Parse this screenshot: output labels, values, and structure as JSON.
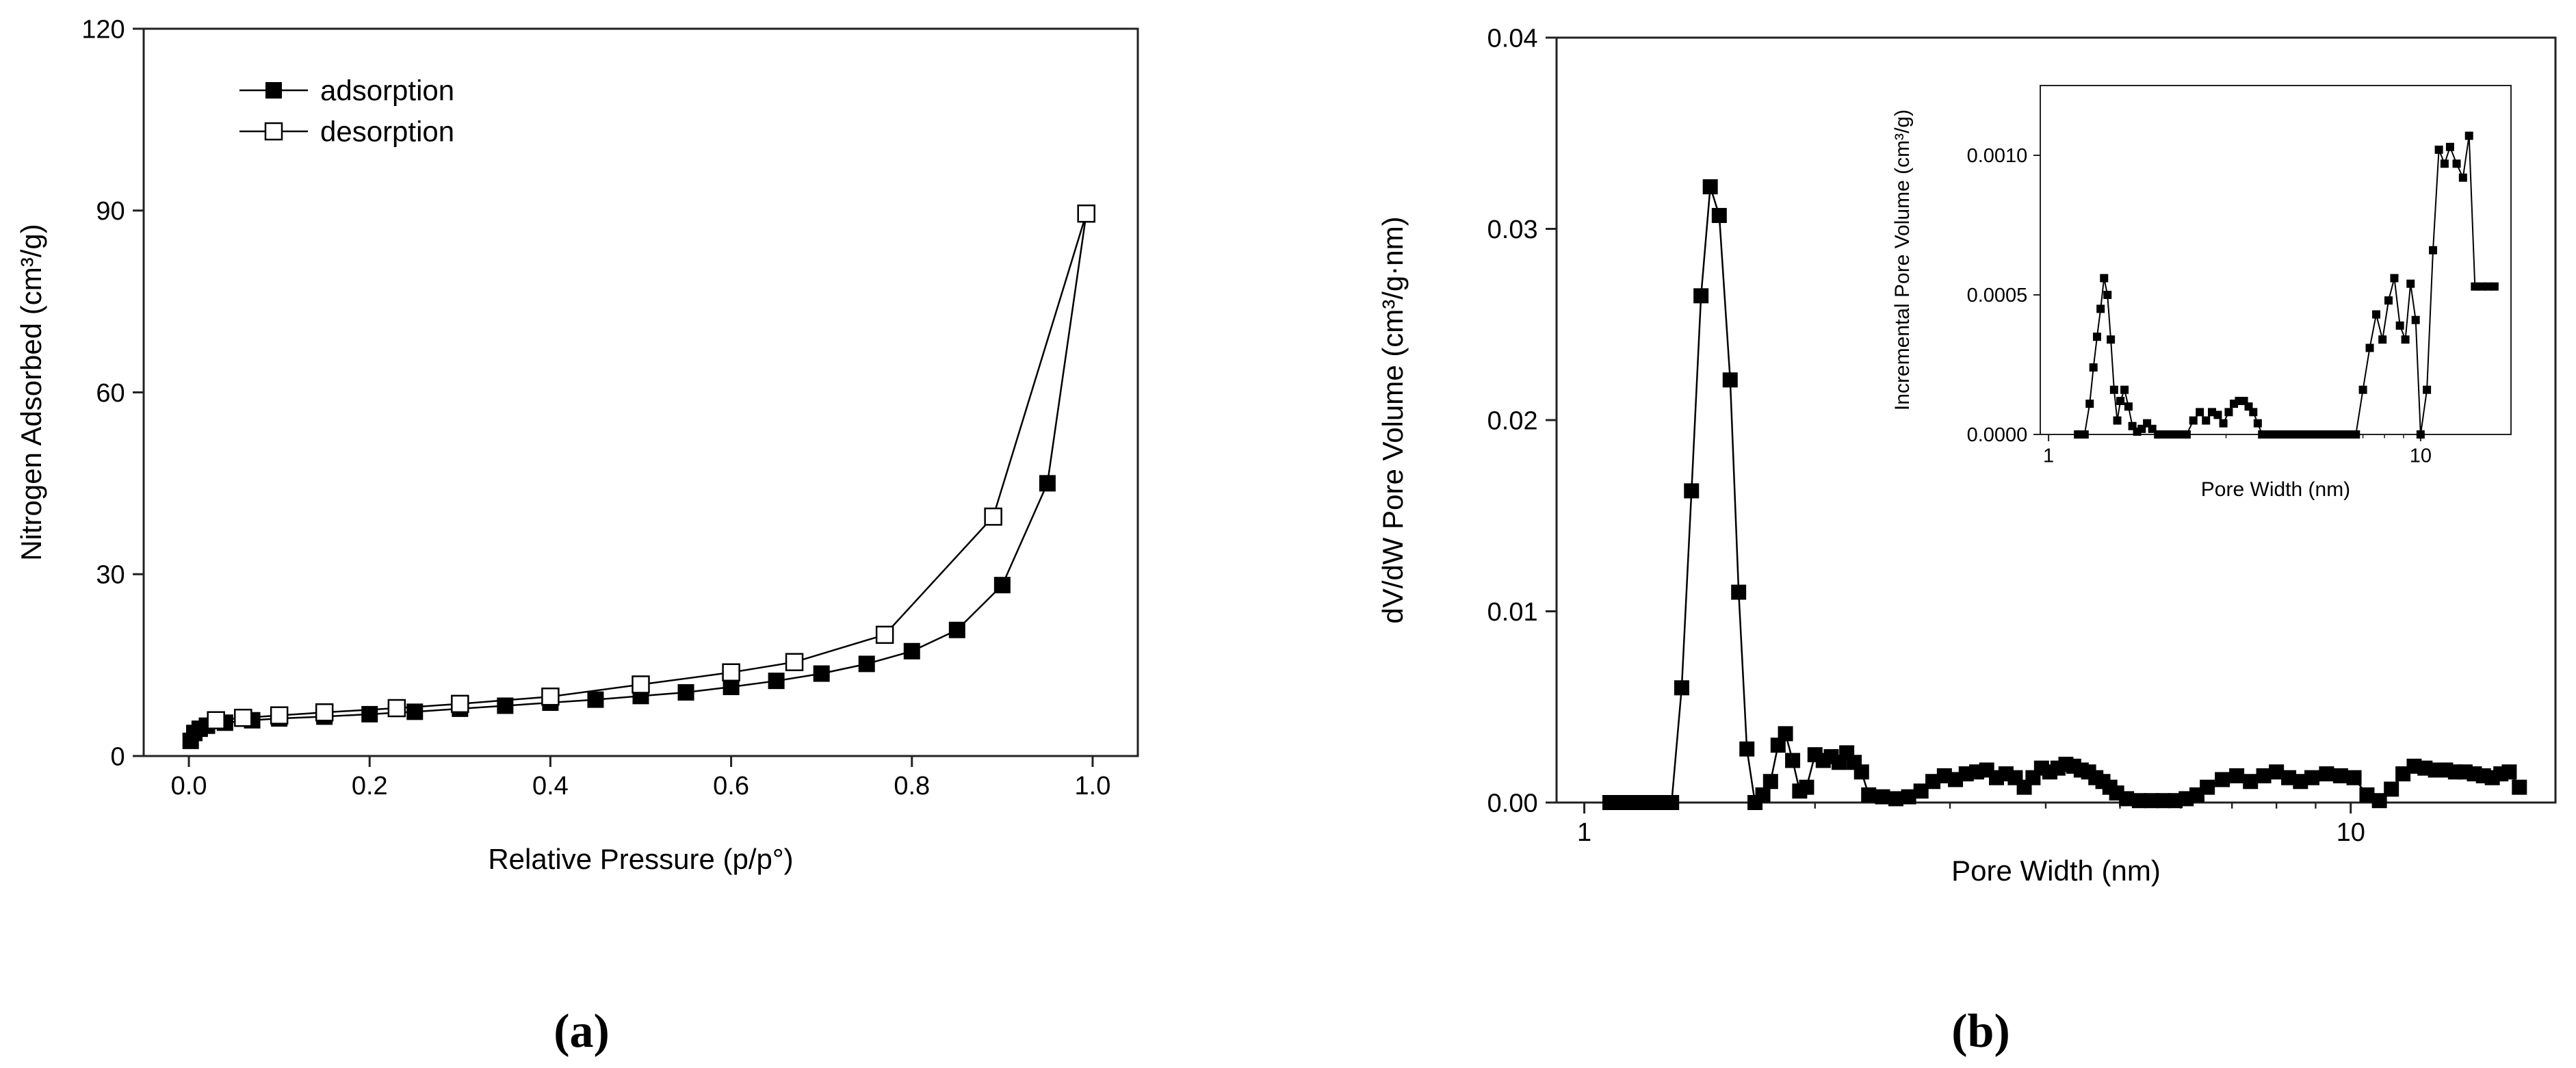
{
  "panels": {
    "a": {
      "caption": "(a)"
    },
    "b": {
      "caption": "(b)"
    }
  },
  "colors": {
    "ink": "#000000",
    "axis": "#222222",
    "background": "#ffffff"
  },
  "chart_data": [
    {
      "id": "a",
      "type": "scatter",
      "title": "",
      "xlabel": "Relative Pressure (p/p°)",
      "ylabel": "Nitrogen Adsorbed (cm³/g)",
      "xlim": [
        -0.05,
        1.05
      ],
      "ylim": [
        0,
        120
      ],
      "xscale": "linear",
      "xticks": [
        0.0,
        0.2,
        0.4,
        0.6,
        0.8,
        1.0
      ],
      "xtick_labels": [
        "0.0",
        "0.2",
        "0.4",
        "0.6",
        "0.8",
        "1.0"
      ],
      "yticks": [
        0,
        30,
        60,
        90,
        120
      ],
      "ytick_labels": [
        "0",
        "30",
        "60",
        "90",
        "120"
      ],
      "legend": "top-left",
      "series": [
        {
          "name": "adsorption",
          "marker": "filled-square",
          "line": true,
          "x": [
            0.002,
            0.006,
            0.012,
            0.02,
            0.04,
            0.07,
            0.1,
            0.15,
            0.2,
            0.25,
            0.3,
            0.35,
            0.4,
            0.45,
            0.5,
            0.55,
            0.6,
            0.65,
            0.7,
            0.75,
            0.8,
            0.85,
            0.9,
            0.95,
            0.993
          ],
          "y": [
            2.5,
            3.8,
            4.5,
            5.0,
            5.5,
            5.9,
            6.2,
            6.5,
            6.9,
            7.3,
            7.8,
            8.3,
            8.8,
            9.3,
            9.9,
            10.5,
            11.4,
            12.4,
            13.6,
            15.2,
            17.3,
            20.8,
            28.2,
            45.0,
            89.5
          ]
        },
        {
          "name": "desorption",
          "marker": "open-square",
          "line": true,
          "x": [
            0.993,
            0.89,
            0.77,
            0.67,
            0.6,
            0.5,
            0.4,
            0.3,
            0.23,
            0.15,
            0.1,
            0.06,
            0.03
          ],
          "y": [
            89.5,
            39.5,
            20.0,
            15.5,
            13.8,
            11.8,
            9.8,
            8.6,
            7.9,
            7.2,
            6.7,
            6.3,
            5.9
          ]
        }
      ]
    },
    {
      "id": "b",
      "type": "scatter",
      "title": "",
      "xlabel": "Pore Width (nm)",
      "ylabel": "dV/dW Pore Volume (cm³/g·nm)",
      "xlim": [
        0.92,
        18.5
      ],
      "ylim": [
        0,
        0.04
      ],
      "xscale": "log",
      "xticks": [
        1,
        10
      ],
      "xtick_labels": [
        "1",
        "10"
      ],
      "yticks": [
        0,
        0.01,
        0.02,
        0.03,
        0.04
      ],
      "ytick_labels": [
        "0.00",
        "0.01",
        "0.02",
        "0.03",
        "0.04"
      ],
      "series": [
        {
          "name": "dV/dW",
          "marker": "filled-square",
          "line": true,
          "x": [
            1.08,
            1.12,
            1.16,
            1.2,
            1.24,
            1.28,
            1.3,
            1.34,
            1.38,
            1.42,
            1.46,
            1.5,
            1.55,
            1.59,
            1.63,
            1.67,
            1.71,
            1.75,
            1.79,
            1.83,
            1.87,
            1.91,
            1.95,
            2.0,
            2.05,
            2.1,
            2.15,
            2.2,
            2.25,
            2.3,
            2.35,
            2.45,
            2.55,
            2.65,
            2.75,
            2.85,
            2.95,
            3.05,
            3.15,
            3.25,
            3.35,
            3.45,
            3.55,
            3.65,
            3.75,
            3.85,
            3.95,
            4.05,
            4.15,
            4.25,
            4.35,
            4.45,
            4.55,
            4.65,
            4.75,
            4.85,
            4.95,
            5.1,
            5.3,
            5.5,
            5.7,
            5.9,
            6.1,
            6.3,
            6.5,
            6.8,
            7.1,
            7.4,
            7.7,
            8.0,
            8.3,
            8.6,
            8.9,
            9.3,
            9.7,
            10.1,
            10.5,
            10.9,
            11.3,
            11.7,
            12.1,
            12.5,
            12.9,
            13.3,
            13.7,
            14.1,
            14.5,
            14.9,
            15.3,
            15.7,
            16.1,
            16.6
          ],
          "y": [
            0,
            0,
            0,
            0,
            0,
            0,
            0,
            0.006,
            0.0163,
            0.0265,
            0.0322,
            0.0307,
            0.0221,
            0.011,
            0.0028,
            0,
            0.0004,
            0.0011,
            0.003,
            0.0036,
            0.0022,
            0.0006,
            0.0008,
            0.0025,
            0.0022,
            0.0024,
            0.0021,
            0.0026,
            0.0021,
            0.0016,
            0.0004,
            0.0003,
            0.0002,
            0.0003,
            0.0006,
            0.0011,
            0.0014,
            0.0012,
            0.0015,
            0.0016,
            0.0017,
            0.0013,
            0.0015,
            0.0013,
            0.0008,
            0.0013,
            0.0018,
            0.0016,
            0.0018,
            0.002,
            0.0019,
            0.0017,
            0.0016,
            0.0013,
            0.0011,
            0.0008,
            0.0005,
            0.0002,
            0.0001,
            0.0001,
            0.0001,
            0.0001,
            0.0002,
            0.0004,
            0.0008,
            0.0012,
            0.0014,
            0.0011,
            0.0014,
            0.0016,
            0.0013,
            0.0011,
            0.0013,
            0.0015,
            0.0014,
            0.0013,
            0.0004,
            0.0001,
            0.0007,
            0.0015,
            0.0019,
            0.0018,
            0.0017,
            0.0017,
            0.0016,
            0.0016,
            0.0015,
            0.0014,
            0.0013,
            0.0015,
            0.0016,
            0.0008
          ]
        }
      ]
    },
    {
      "id": "b-inset",
      "type": "scatter",
      "title": "",
      "xlabel": "Pore Width (nm)",
      "ylabel": "Incremental Pore Volume (cm³/g)",
      "xlim": [
        0.95,
        17.5
      ],
      "ylim": [
        0,
        0.00125
      ],
      "xscale": "log",
      "xticks": [
        1,
        10
      ],
      "xtick_labels": [
        "1",
        "10"
      ],
      "yticks": [
        0,
        0.0005,
        0.001
      ],
      "ytick_labels": [
        "0.0000",
        "0.0005",
        "0.0010"
      ],
      "series": [
        {
          "name": "incremental",
          "marker": "filled-square",
          "line": true,
          "x": [
            1.2,
            1.25,
            1.29,
            1.32,
            1.35,
            1.38,
            1.41,
            1.44,
            1.47,
            1.5,
            1.53,
            1.56,
            1.6,
            1.64,
            1.68,
            1.73,
            1.78,
            1.84,
            1.9,
            1.97,
            2.05,
            2.15,
            2.25,
            2.35,
            2.45,
            2.55,
            2.65,
            2.75,
            2.85,
            2.95,
            3.05,
            3.15,
            3.25,
            3.35,
            3.45,
            3.55,
            3.65,
            3.75,
            3.9,
            4.05,
            4.2,
            4.35,
            4.5,
            4.65,
            4.8,
            5.0,
            5.2,
            5.4,
            5.6,
            5.85,
            6.1,
            6.4,
            6.7,
            7.0,
            7.3,
            7.6,
            7.9,
            8.2,
            8.5,
            8.8,
            9.1,
            9.4,
            9.7,
            10.0,
            10.4,
            10.8,
            11.2,
            11.6,
            12.0,
            12.5,
            13.0,
            13.5,
            14.0,
            14.6,
            15.2,
            15.8
          ],
          "y": [
            0.0,
            0.0,
            0.00011,
            0.00024,
            0.00035,
            0.00045,
            0.00056,
            0.0005,
            0.00034,
            0.00016,
            5e-05,
            0.00012,
            0.00016,
            0.0001,
            3e-05,
            1e-05,
            2e-05,
            4e-05,
            2e-05,
            0.0,
            0.0,
            0.0,
            0.0,
            0.0,
            5e-05,
            8e-05,
            5e-05,
            8e-05,
            7e-05,
            4e-05,
            8e-05,
            0.00011,
            0.00012,
            0.00012,
            0.0001,
            8e-05,
            4e-05,
            0.0,
            0.0,
            0.0,
            0.0,
            0.0,
            0.0,
            0.0,
            0.0,
            0.0,
            0.0,
            0.0,
            0.0,
            0.0,
            0.0,
            0.0,
            0.0,
            0.00016,
            0.00031,
            0.00043,
            0.00034,
            0.00048,
            0.00056,
            0.00039,
            0.00034,
            0.00054,
            0.00041,
            0.0,
            0.00016,
            0.00066,
            0.00102,
            0.00097,
            0.00103,
            0.00097,
            0.00092,
            0.00107,
            0.00053,
            0.00053,
            0.00053,
            0.00053
          ]
        }
      ]
    }
  ]
}
